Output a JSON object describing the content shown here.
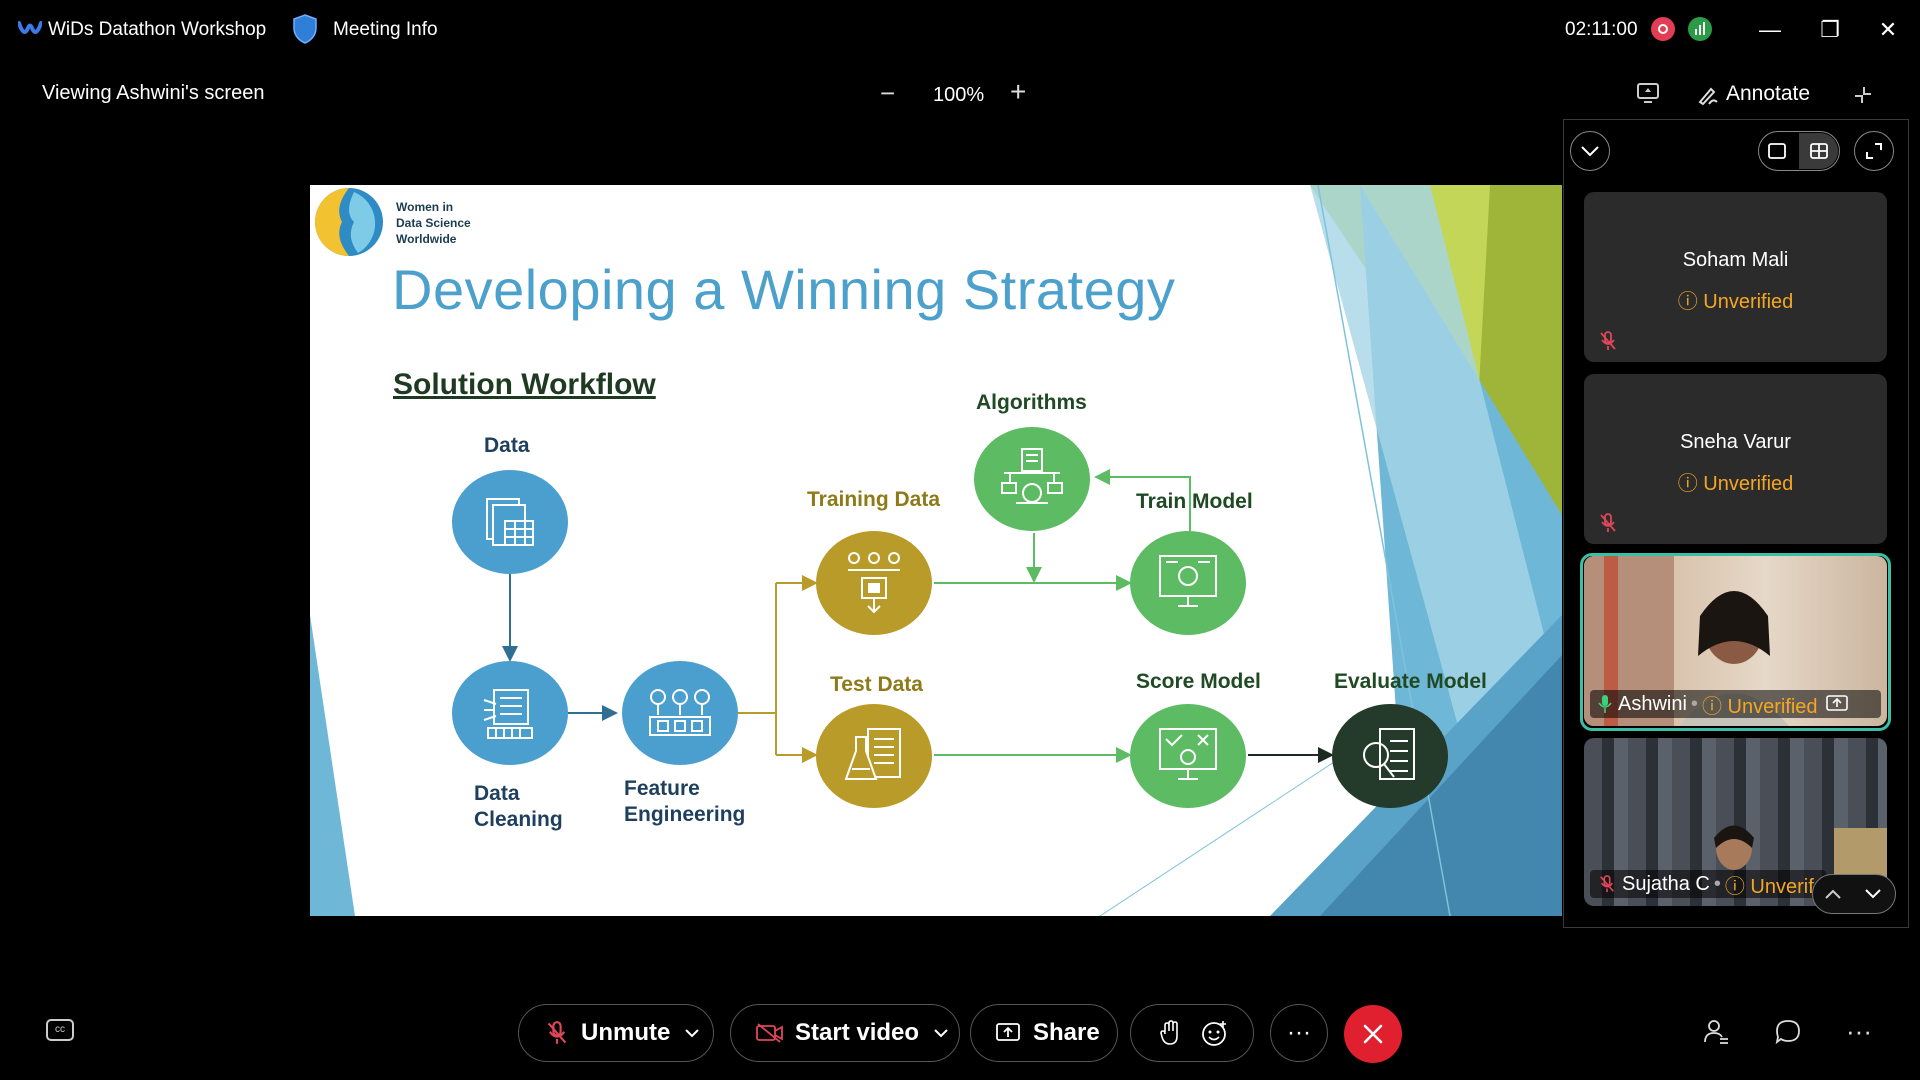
{
  "titlebar": {
    "app_title": "WiDs Datathon Workshop",
    "meeting_info": "Meeting Info",
    "timer": "02:11:00",
    "minimize": "—",
    "restore": "❐",
    "close": "✕"
  },
  "toolbar": {
    "viewing_label": "Viewing Ashwini's screen",
    "zoom_out": "−",
    "zoom_level": "100%",
    "zoom_in": "+",
    "annotate_label": "Annotate"
  },
  "slide": {
    "org_line1": "Women in",
    "org_line2": "Data Science",
    "org_line3": "Worldwide",
    "title": "Developing a Winning Strategy",
    "subheading": "Solution Workflow",
    "nodes": {
      "data": "Data",
      "data_cleaning_1": "Data",
      "data_cleaning_2": "Cleaning",
      "feature_eng_1": "Feature",
      "feature_eng_2": "Engineering",
      "training_data": "Training Data",
      "test_data": "Test Data",
      "algorithms": "Algorithms",
      "train_model": "Train Model",
      "score_model": "Score Model",
      "evaluate_model": "Evaluate Model"
    },
    "colors": {
      "blue": "#4a9fcf",
      "gold": "#b99b2a",
      "green": "#5dbb63",
      "dark": "#243b2c"
    }
  },
  "participants": [
    {
      "name": "Soham Mali",
      "status": "Unverified",
      "muted": true
    },
    {
      "name": "Sneha Varur",
      "status": "Unverified",
      "muted": true
    },
    {
      "name": "Ashwini",
      "status": "Unverified",
      "muted": false,
      "sharing": true
    },
    {
      "name": "Sujatha C",
      "status": "Unverif",
      "muted": true
    }
  ],
  "bottombar": {
    "unmute_label": "Unmute",
    "start_video_label": "Start video",
    "share_label": "Share",
    "more_label": "···",
    "right_more": "···"
  },
  "icons": [
    "webex-logo-icon",
    "shield-icon",
    "record-icon",
    "stats-icon",
    "zoom-out-icon",
    "zoom-in-icon",
    "annotate-icon",
    "captions-icon",
    "mic-off-icon",
    "video-off-icon",
    "share-icon",
    "raise-hand-icon",
    "reactions-icon",
    "end-call-icon",
    "participants-icon",
    "chat-icon"
  ],
  "accent_colors": {
    "end_call": "#e0202e",
    "unverified": "#f5a623",
    "active_speaker": "#3bbfa7"
  }
}
